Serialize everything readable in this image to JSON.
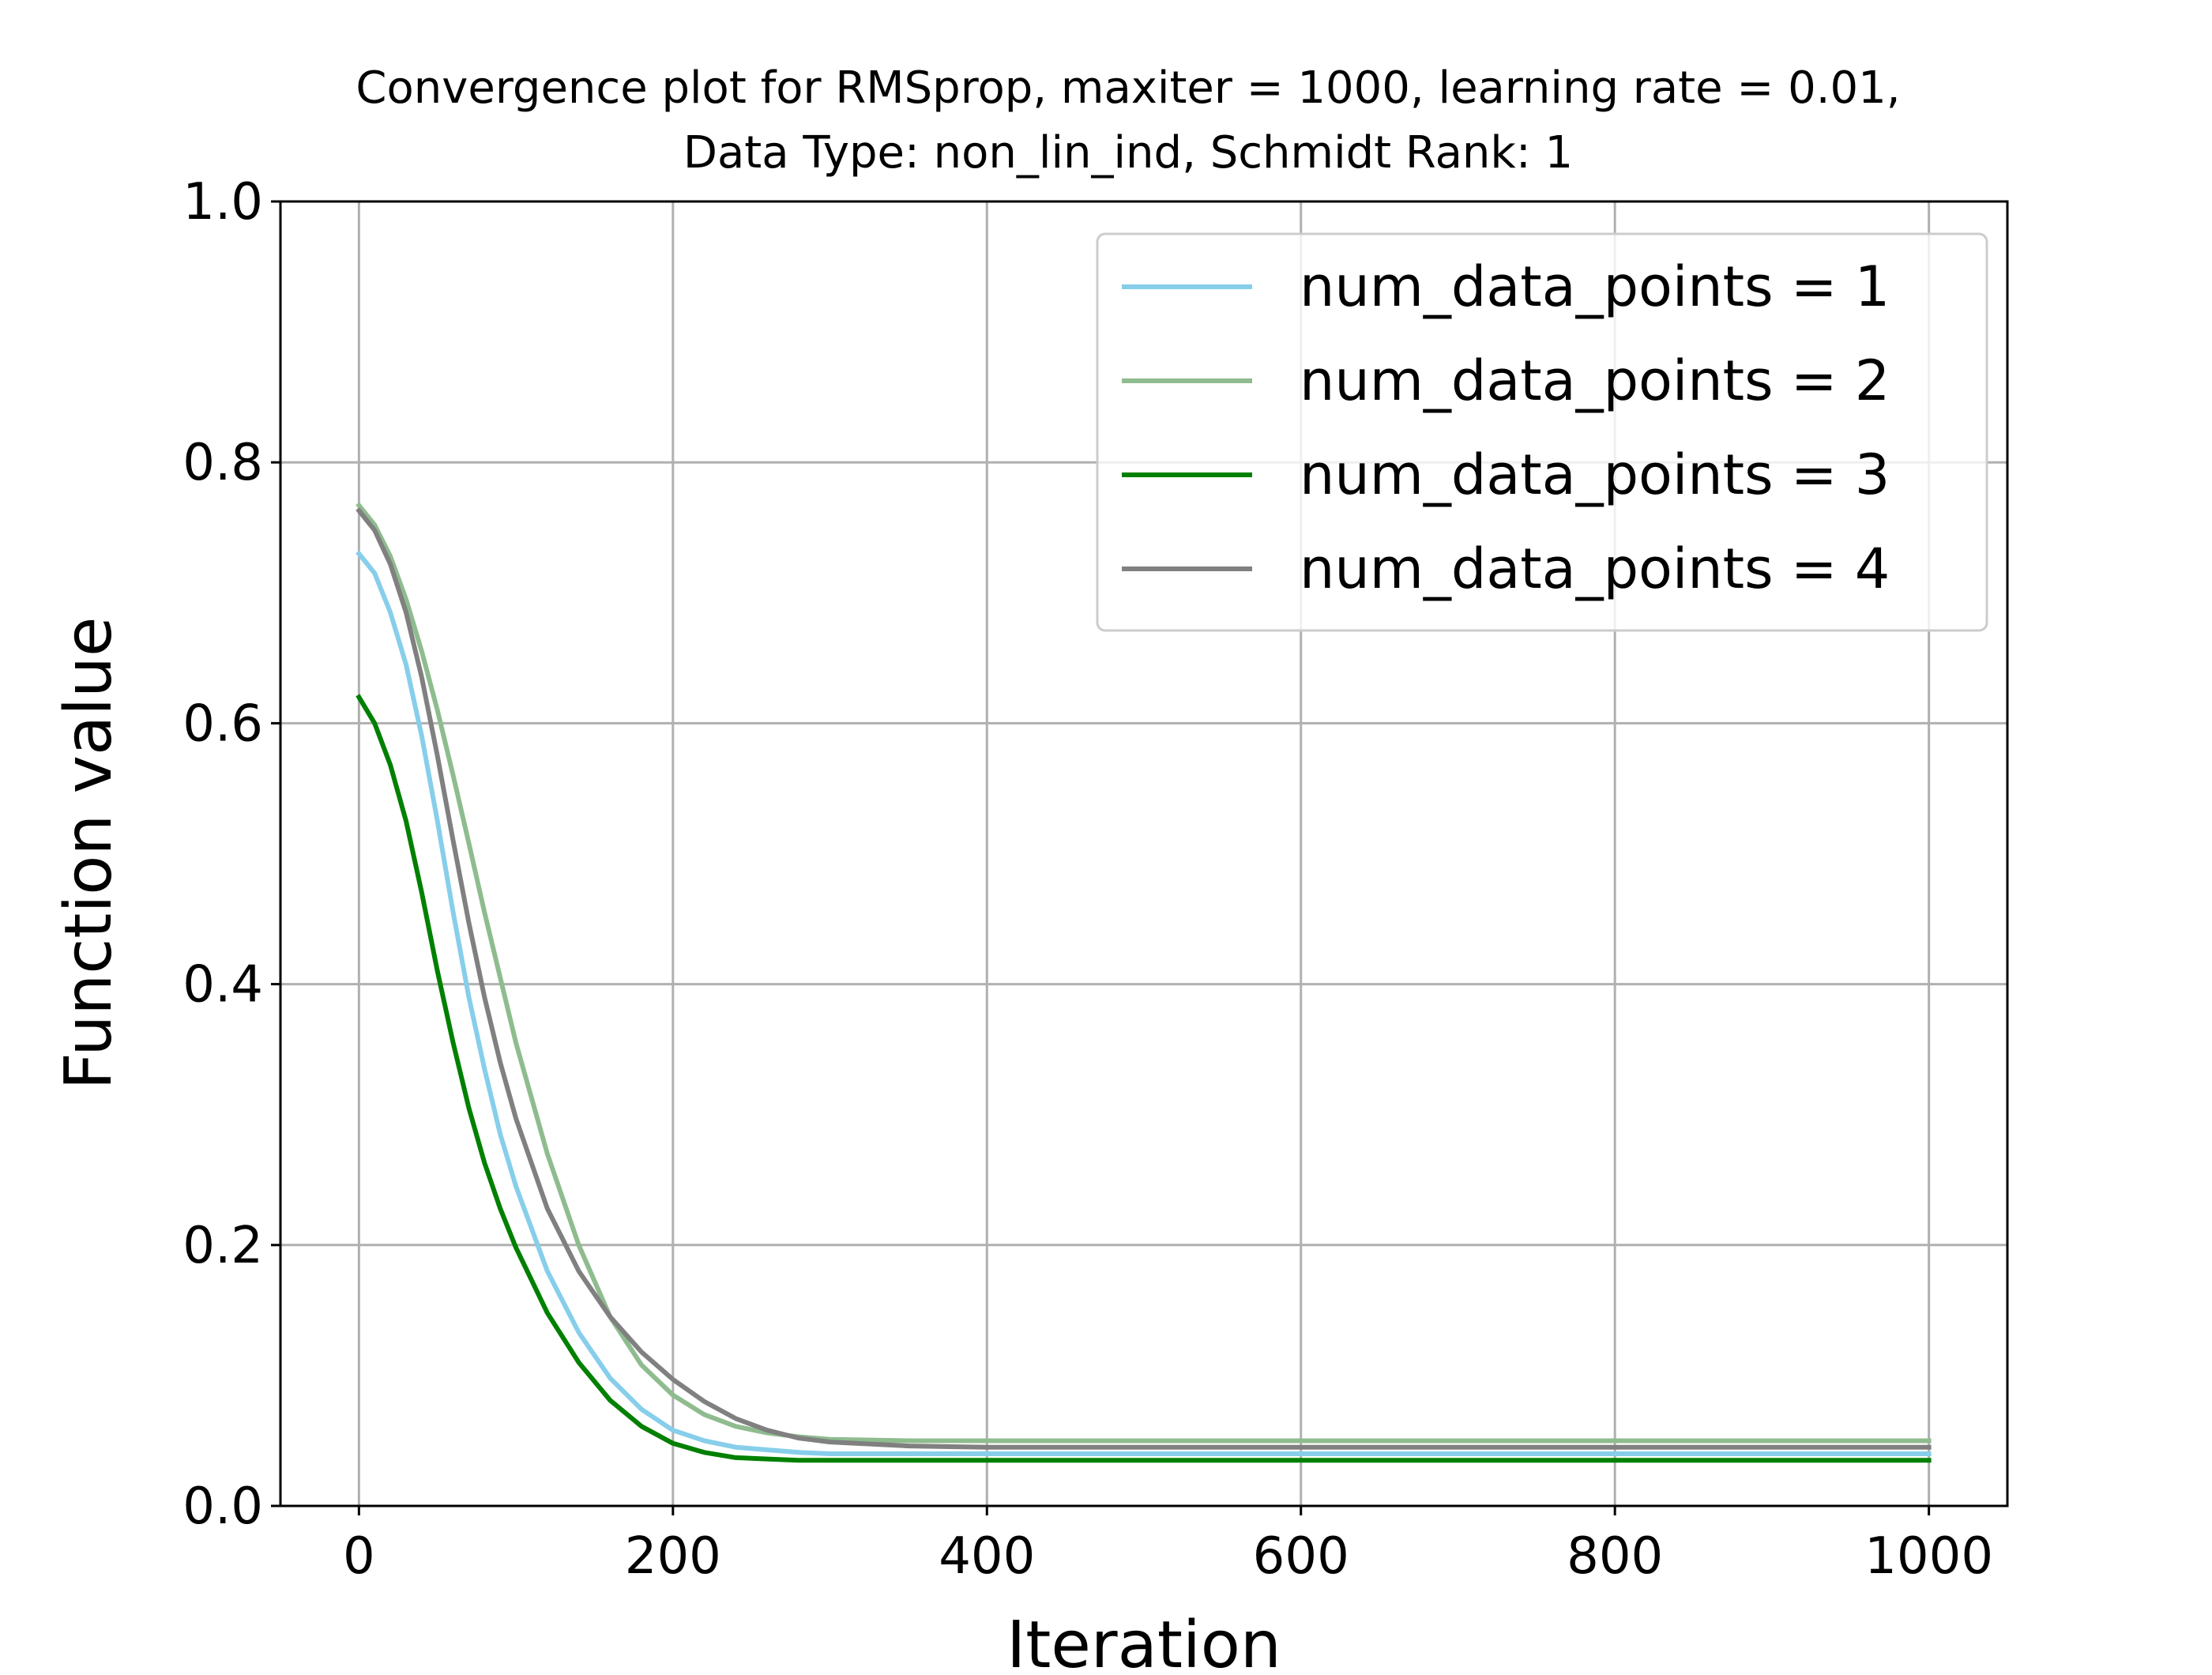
{
  "chart_data": {
    "type": "line",
    "title": "Convergence plot for RMSprop, maxiter = 1000, learning rate = 0.01,",
    "subtitle": "Data Type: non_lin_ind, Schmidt Rank: 1",
    "xlabel": "Iteration",
    "ylabel": "Function value",
    "xlim": [
      -50,
      1050
    ],
    "ylim": [
      0.0,
      1.0
    ],
    "xticks": [
      0,
      200,
      400,
      600,
      800,
      1000
    ],
    "xtick_labels": [
      "0",
      "200",
      "400",
      "600",
      "800",
      "1000"
    ],
    "yticks": [
      0.0,
      0.2,
      0.4,
      0.6,
      0.8,
      1.0
    ],
    "ytick_labels": [
      "0.0",
      "0.2",
      "0.4",
      "0.6",
      "0.8",
      "1.0"
    ],
    "grid": true,
    "legend_position": "top-right",
    "x": [
      0,
      10,
      20,
      30,
      40,
      50,
      60,
      70,
      80,
      90,
      100,
      120,
      140,
      160,
      180,
      200,
      220,
      240,
      260,
      280,
      300,
      350,
      400,
      500,
      600,
      700,
      800,
      900,
      1000
    ],
    "series": [
      {
        "name": "num_data_points = 1",
        "color": "#87ceeb",
        "values": [
          0.73,
          0.715,
          0.685,
          0.645,
          0.59,
          0.525,
          0.455,
          0.39,
          0.335,
          0.285,
          0.245,
          0.18,
          0.133,
          0.098,
          0.074,
          0.058,
          0.05,
          0.045,
          0.043,
          0.041,
          0.04,
          0.04,
          0.04,
          0.04,
          0.04,
          0.04,
          0.04,
          0.04,
          0.04
        ]
      },
      {
        "name": "num_data_points = 2",
        "color": "#8fbc8f",
        "values": [
          0.767,
          0.752,
          0.728,
          0.695,
          0.655,
          0.61,
          0.56,
          0.508,
          0.455,
          0.405,
          0.355,
          0.27,
          0.2,
          0.145,
          0.108,
          0.085,
          0.07,
          0.061,
          0.056,
          0.053,
          0.051,
          0.05,
          0.05,
          0.05,
          0.05,
          0.05,
          0.05,
          0.05,
          0.05
        ]
      },
      {
        "name": "num_data_points = 3",
        "color": "#008000",
        "values": [
          0.62,
          0.6,
          0.568,
          0.525,
          0.47,
          0.41,
          0.355,
          0.305,
          0.263,
          0.228,
          0.198,
          0.148,
          0.11,
          0.081,
          0.061,
          0.048,
          0.041,
          0.037,
          0.036,
          0.035,
          0.035,
          0.035,
          0.035,
          0.035,
          0.035,
          0.035,
          0.035,
          0.035,
          0.035
        ]
      },
      {
        "name": "num_data_points = 4",
        "color": "#808080",
        "values": [
          0.763,
          0.748,
          0.722,
          0.685,
          0.635,
          0.575,
          0.51,
          0.447,
          0.39,
          0.34,
          0.297,
          0.228,
          0.18,
          0.145,
          0.118,
          0.097,
          0.08,
          0.067,
          0.058,
          0.052,
          0.049,
          0.046,
          0.045,
          0.045,
          0.045,
          0.045,
          0.045,
          0.045,
          0.045
        ]
      }
    ]
  }
}
